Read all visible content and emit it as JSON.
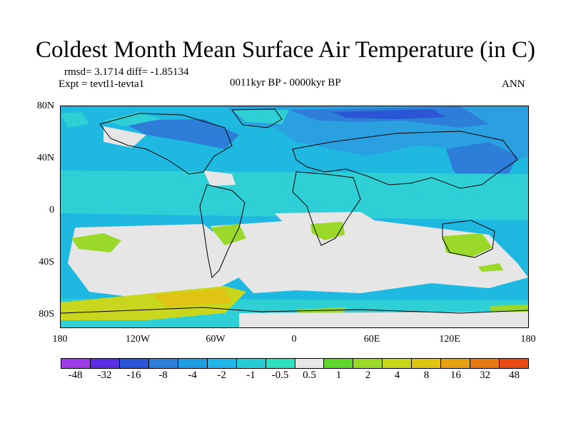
{
  "title": "Coldest Month Mean Surface Air Temperature (in C)",
  "stats": "rmsd= 3.1714 diff= -1.85134",
  "experiment": "Expt = tevtl1-tevta1",
  "period": "0011kyr BP - 0000kyr BP",
  "season": "ANN",
  "y_ticks": [
    "80N",
    "40N",
    "0",
    "40S",
    "80S"
  ],
  "x_ticks": [
    "180",
    "120W",
    "60W",
    "0",
    "60E",
    "120E",
    "180"
  ],
  "colorbar": {
    "colors": [
      "#9b3ce6",
      "#5a2ee0",
      "#2a56d6",
      "#2c7ed9",
      "#1f9de0",
      "#22b4e6",
      "#27cbd6",
      "#2ee0c0",
      "#e6e6e6",
      "#5fd62e",
      "#9ad92a",
      "#c8d61e",
      "#e0c414",
      "#e6a014",
      "#e67814",
      "#e64a10"
    ],
    "labels": [
      "-48",
      "-32",
      "-16",
      "-8",
      "-4",
      "-2",
      "-1",
      "-0.5",
      "0.5",
      "1",
      "2",
      "4",
      "8",
      "16",
      "32",
      "48"
    ]
  },
  "map_colors": {
    "background": "#1fb8e0",
    "near_zero": "#e6e6e6",
    "cool": "#2aa0e0",
    "cold": "#2c7ed9",
    "very_cold": "#2a56d6",
    "slight_cool": "#2ed0d6",
    "warm_small": "#9ad92a",
    "warm_med": "#c8d61e",
    "warm_high": "#e0c414",
    "coastline": "#000000"
  }
}
